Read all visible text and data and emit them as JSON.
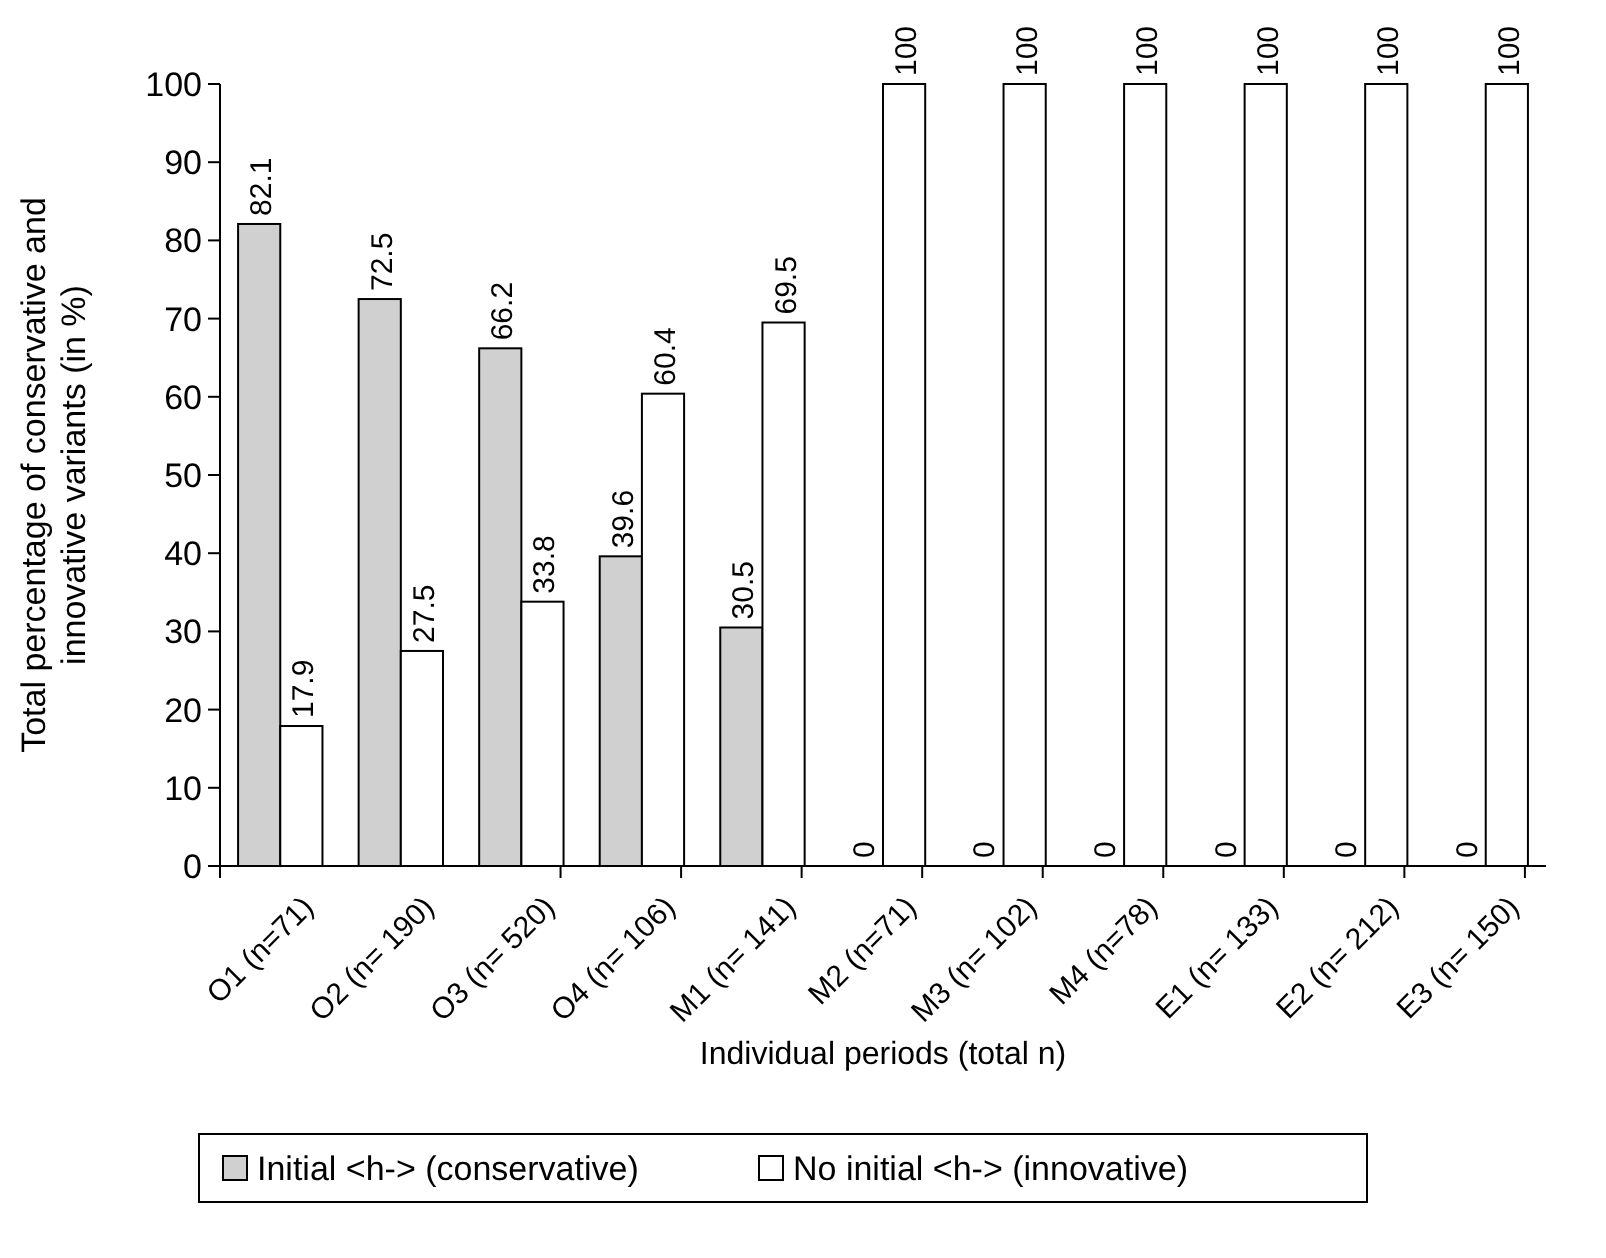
{
  "chart_data": {
    "type": "bar",
    "xlabel": "Individual periods (total n)",
    "ylabel": "Total percentage of conservative and innovative variants (in %)",
    "categories": [
      "O1 (n=71)",
      "O2 (n= 190)",
      "O3 (n= 520)",
      "O4 (n= 106)",
      "M1 (n= 141)",
      "M2 (n=71)",
      "M3 (n= 102)",
      "M4 (n=78)",
      "E1 (n= 133)",
      "E2 (n= 212)",
      "E3 (n= 150)"
    ],
    "series": [
      {
        "name": "Initial <h-> (conservative)",
        "color": "#d0d0d0",
        "values": [
          82.1,
          72.5,
          66.2,
          39.6,
          30.5,
          0,
          0,
          0,
          0,
          0,
          0
        ]
      },
      {
        "name": "No initial <h-> (innovative)",
        "color": "#ffffff",
        "values": [
          17.9,
          27.5,
          33.8,
          60.4,
          69.5,
          100,
          100,
          100,
          100,
          100,
          100
        ]
      }
    ],
    "ylim": [
      0,
      100
    ],
    "yticks": [
      0,
      10,
      20,
      30,
      40,
      50,
      60,
      70,
      80,
      90,
      100
    ],
    "data_labels": true,
    "legend": "bottom",
    "grid": false
  }
}
